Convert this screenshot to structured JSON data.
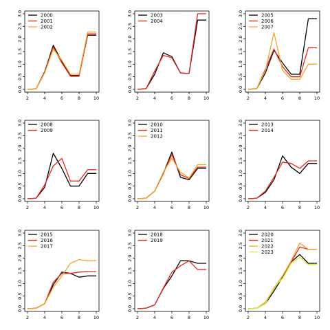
{
  "chart_data": [
    {
      "type": "line",
      "x": [
        2,
        3,
        4,
        5,
        6,
        7,
        8,
        9,
        10
      ],
      "xticks": [
        2,
        4,
        6,
        8,
        10
      ],
      "yticks": [
        0.0,
        0.5,
        1.0,
        1.5,
        2.0,
        2.5,
        3.0
      ],
      "xlim": [
        2,
        10
      ],
      "ylim": [
        0,
        3
      ],
      "legend_position": "top-left",
      "series": [
        {
          "name": "2000",
          "color": "#000000",
          "values": [
            0.0,
            0.02,
            0.7,
            1.75,
            1.1,
            0.55,
            0.55,
            2.15,
            2.15
          ]
        },
        {
          "name": "2001",
          "color": "#e8241a",
          "values": [
            0.0,
            0.02,
            0.68,
            1.68,
            1.05,
            0.52,
            0.52,
            2.2,
            2.2
          ]
        },
        {
          "name": "2002",
          "color": "#f5a623",
          "values": [
            0.0,
            0.02,
            0.65,
            1.6,
            1.15,
            0.6,
            0.6,
            2.27,
            2.27
          ]
        }
      ]
    },
    {
      "type": "line",
      "x": [
        2,
        3,
        4,
        5,
        6,
        7,
        8,
        9,
        10
      ],
      "xticks": [
        2,
        4,
        6,
        8,
        10
      ],
      "yticks": [
        0.0,
        0.5,
        1.0,
        1.5,
        2.0,
        2.5,
        3.0
      ],
      "xlim": [
        2,
        10
      ],
      "ylim": [
        0,
        3
      ],
      "legend_position": "top-left",
      "series": [
        {
          "name": "2003",
          "color": "#000000",
          "values": [
            0.0,
            0.03,
            0.6,
            1.45,
            1.3,
            0.65,
            0.63,
            2.75,
            2.75
          ]
        },
        {
          "name": "2004",
          "color": "#e8241a",
          "values": [
            0.0,
            0.03,
            0.72,
            1.35,
            1.25,
            0.65,
            0.63,
            3.0,
            3.0
          ]
        }
      ]
    },
    {
      "type": "line",
      "x": [
        2,
        3,
        4,
        5,
        6,
        7,
        8,
        9,
        10
      ],
      "xticks": [
        2,
        4,
        6,
        8,
        10
      ],
      "yticks": [
        0.0,
        0.5,
        1.0,
        1.5,
        2.0,
        2.5,
        3.0
      ],
      "xlim": [
        2,
        10
      ],
      "ylim": [
        0,
        3
      ],
      "legend_position": "top-left",
      "series": [
        {
          "name": "2005",
          "color": "#000000",
          "values": [
            0.0,
            0.03,
            0.65,
            1.55,
            1.05,
            0.6,
            0.6,
            2.8,
            2.8
          ]
        },
        {
          "name": "2006",
          "color": "#e8241a",
          "values": [
            0.0,
            0.03,
            0.8,
            1.6,
            0.9,
            0.5,
            0.5,
            1.65,
            1.65
          ]
        },
        {
          "name": "2007",
          "color": "#f5a623",
          "values": [
            0.0,
            0.03,
            0.75,
            2.25,
            0.75,
            0.4,
            0.4,
            1.0,
            1.0
          ]
        }
      ]
    },
    {
      "type": "line",
      "x": [
        2,
        3,
        4,
        5,
        6,
        7,
        8,
        9,
        10
      ],
      "xticks": [
        2,
        4,
        6,
        8,
        10
      ],
      "yticks": [
        0.0,
        0.5,
        1.0,
        1.5,
        2.0,
        2.5,
        3.0
      ],
      "xlim": [
        2,
        10
      ],
      "ylim": [
        0,
        3
      ],
      "legend_position": "top-left",
      "series": [
        {
          "name": "2008",
          "color": "#000000",
          "values": [
            0.0,
            0.02,
            0.45,
            1.8,
            1.2,
            0.5,
            0.5,
            1.0,
            1.0
          ]
        },
        {
          "name": "2009",
          "color": "#e8241a",
          "values": [
            0.0,
            0.02,
            0.55,
            1.3,
            1.6,
            0.7,
            0.7,
            1.15,
            1.15
          ]
        }
      ]
    },
    {
      "type": "line",
      "x": [
        2,
        3,
        4,
        5,
        6,
        7,
        8,
        9,
        10
      ],
      "xticks": [
        2,
        4,
        6,
        8,
        10
      ],
      "yticks": [
        0.0,
        0.5,
        1.0,
        1.5,
        2.0,
        2.5,
        3.0
      ],
      "xlim": [
        2,
        10
      ],
      "ylim": [
        0,
        3
      ],
      "legend_position": "top-left",
      "series": [
        {
          "name": "2010",
          "color": "#000000",
          "values": [
            0.0,
            0.02,
            0.3,
            1.0,
            1.85,
            0.85,
            0.75,
            1.2,
            1.2
          ]
        },
        {
          "name": "2011",
          "color": "#e8241a",
          "values": [
            0.0,
            0.02,
            0.3,
            1.0,
            1.75,
            0.95,
            0.8,
            1.25,
            1.25
          ]
        },
        {
          "name": "2012",
          "color": "#f5a623",
          "values": [
            0.0,
            0.02,
            0.3,
            1.05,
            1.6,
            1.05,
            0.82,
            1.35,
            1.35
          ]
        }
      ]
    },
    {
      "type": "line",
      "x": [
        2,
        3,
        4,
        5,
        6,
        7,
        8,
        9,
        10
      ],
      "xticks": [
        2,
        4,
        6,
        8,
        10
      ],
      "yticks": [
        0.0,
        0.5,
        1.0,
        1.5,
        2.0,
        2.5,
        3.0
      ],
      "xlim": [
        2,
        10
      ],
      "ylim": [
        0,
        3
      ],
      "legend_position": "top-left",
      "series": [
        {
          "name": "2013",
          "color": "#000000",
          "values": [
            0.0,
            0.02,
            0.25,
            0.75,
            1.7,
            1.25,
            1.0,
            1.4,
            1.4
          ]
        },
        {
          "name": "2014",
          "color": "#e8241a",
          "values": [
            0.0,
            0.02,
            0.3,
            0.85,
            1.45,
            1.4,
            1.2,
            1.5,
            1.5
          ]
        }
      ]
    },
    {
      "type": "line",
      "x": [
        2,
        3,
        4,
        5,
        6,
        7,
        8,
        9,
        10
      ],
      "xticks": [
        2,
        4,
        6,
        8,
        10
      ],
      "yticks": [
        0.0,
        0.5,
        1.0,
        1.5,
        2.0,
        2.5,
        3.0
      ],
      "xlim": [
        2,
        10
      ],
      "ylim": [
        0,
        3
      ],
      "legend_position": "top-left",
      "series": [
        {
          "name": "2015",
          "color": "#000000",
          "values": [
            0.0,
            0.02,
            0.2,
            0.95,
            1.45,
            1.4,
            1.25,
            1.3,
            1.3
          ]
        },
        {
          "name": "2016",
          "color": "#e8241a",
          "values": [
            0.0,
            0.02,
            0.2,
            1.05,
            1.4,
            1.4,
            1.45,
            1.47,
            1.47
          ]
        },
        {
          "name": "2017",
          "color": "#f5a623",
          "values": [
            0.0,
            0.02,
            0.2,
            0.85,
            1.3,
            1.8,
            1.95,
            1.9,
            1.9
          ]
        }
      ]
    },
    {
      "type": "line",
      "x": [
        2,
        3,
        4,
        5,
        6,
        7,
        8,
        9,
        10
      ],
      "xticks": [
        2,
        4,
        6,
        8,
        10
      ],
      "yticks": [
        0.0,
        0.5,
        1.0,
        1.5,
        2.0,
        2.5,
        3.0
      ],
      "xlim": [
        2,
        10
      ],
      "ylim": [
        0,
        3
      ],
      "legend_position": "top-left",
      "series": [
        {
          "name": "2018",
          "color": "#000000",
          "values": [
            0.0,
            0.02,
            0.15,
            0.8,
            1.3,
            1.9,
            1.9,
            1.8,
            1.8
          ]
        },
        {
          "name": "2019",
          "color": "#e8241a",
          "values": [
            0.0,
            0.02,
            0.15,
            0.82,
            1.45,
            1.7,
            1.9,
            1.55,
            1.55
          ]
        }
      ]
    },
    {
      "type": "line",
      "x": [
        2,
        3,
        4,
        5,
        6,
        7,
        8,
        9,
        10
      ],
      "xticks": [
        2,
        4,
        6,
        8,
        10
      ],
      "yticks": [
        0.0,
        0.5,
        1.0,
        1.5,
        2.0,
        2.5,
        3.0
      ],
      "xlim": [
        2,
        10
      ],
      "ylim": [
        0,
        3
      ],
      "legend_position": "top-left",
      "series": [
        {
          "name": "2020",
          "color": "#000000",
          "values": [
            0.0,
            0.02,
            0.2,
            0.7,
            1.25,
            1.85,
            2.15,
            1.8,
            1.8
          ]
        },
        {
          "name": "2021",
          "color": "#e8241a",
          "values": [
            0.0,
            0.02,
            0.25,
            0.8,
            1.3,
            1.85,
            2.45,
            2.35,
            2.35
          ]
        },
        {
          "name": "2022",
          "color": "#f5a623",
          "values": [
            0.0,
            0.02,
            0.25,
            0.8,
            1.3,
            1.9,
            2.6,
            2.35,
            2.35
          ]
        },
        {
          "name": "2023",
          "color": "#d4ec2e",
          "values": [
            0.0,
            0.02,
            0.2,
            0.85,
            1.2,
            1.8,
            2.05,
            1.75,
            1.75
          ]
        }
      ]
    }
  ]
}
